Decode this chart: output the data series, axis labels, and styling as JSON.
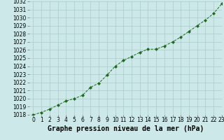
{
  "x": [
    0,
    1,
    2,
    3,
    4,
    5,
    6,
    7,
    8,
    9,
    10,
    11,
    12,
    13,
    14,
    15,
    16,
    17,
    18,
    19,
    20,
    21,
    22,
    23
  ],
  "y": [
    1018.0,
    1018.3,
    1018.7,
    1019.2,
    1019.7,
    1020.0,
    1020.4,
    1021.4,
    1021.9,
    1022.9,
    1024.0,
    1024.7,
    1025.2,
    1025.7,
    1026.1,
    1026.1,
    1026.5,
    1027.0,
    1027.6,
    1028.3,
    1029.0,
    1029.7,
    1030.5,
    1031.7
  ],
  "ylim": [
    1018,
    1032
  ],
  "xlim": [
    -0.5,
    23
  ],
  "yticks": [
    1018,
    1019,
    1020,
    1021,
    1022,
    1023,
    1024,
    1025,
    1026,
    1027,
    1028,
    1029,
    1030,
    1031,
    1032
  ],
  "xticks": [
    0,
    1,
    2,
    3,
    4,
    5,
    6,
    7,
    8,
    9,
    10,
    11,
    12,
    13,
    14,
    15,
    16,
    17,
    18,
    19,
    20,
    21,
    22,
    23
  ],
  "line_color": "#1a6b1a",
  "marker": "D",
  "marker_size": 2,
  "bg_color": "#cce8e8",
  "grid_color": "#aacccc",
  "xlabel": "Graphe pression niveau de la mer (hPa)",
  "xlabel_fontsize": 7,
  "tick_fontsize": 5.5
}
